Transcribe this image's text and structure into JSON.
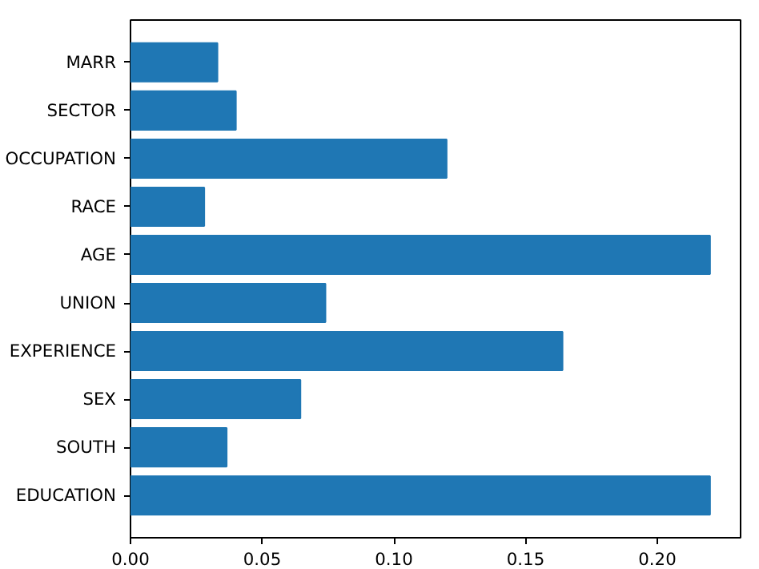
{
  "chart_data": {
    "type": "bar",
    "orientation": "horizontal",
    "categories": [
      "MARR",
      "SECTOR",
      "OCCUPATION",
      "RACE",
      "AGE",
      "UNION",
      "EXPERIENCE",
      "SEX",
      "SOUTH",
      "EDUCATION"
    ],
    "values": [
      0.033,
      0.04,
      0.12,
      0.028,
      0.22,
      0.074,
      0.164,
      0.0645,
      0.0365,
      0.22
    ],
    "color": "#1f77b4",
    "xlim": [
      0,
      0.2316
    ],
    "xticks": [
      {
        "value": 0,
        "label": "0.00"
      },
      {
        "value": 0.05,
        "label": "0.05"
      },
      {
        "value": 0.1,
        "label": "0.10"
      },
      {
        "value": 0.15,
        "label": "0.15"
      },
      {
        "value": 0.2,
        "label": "0.20"
      }
    ],
    "grid": false
  }
}
